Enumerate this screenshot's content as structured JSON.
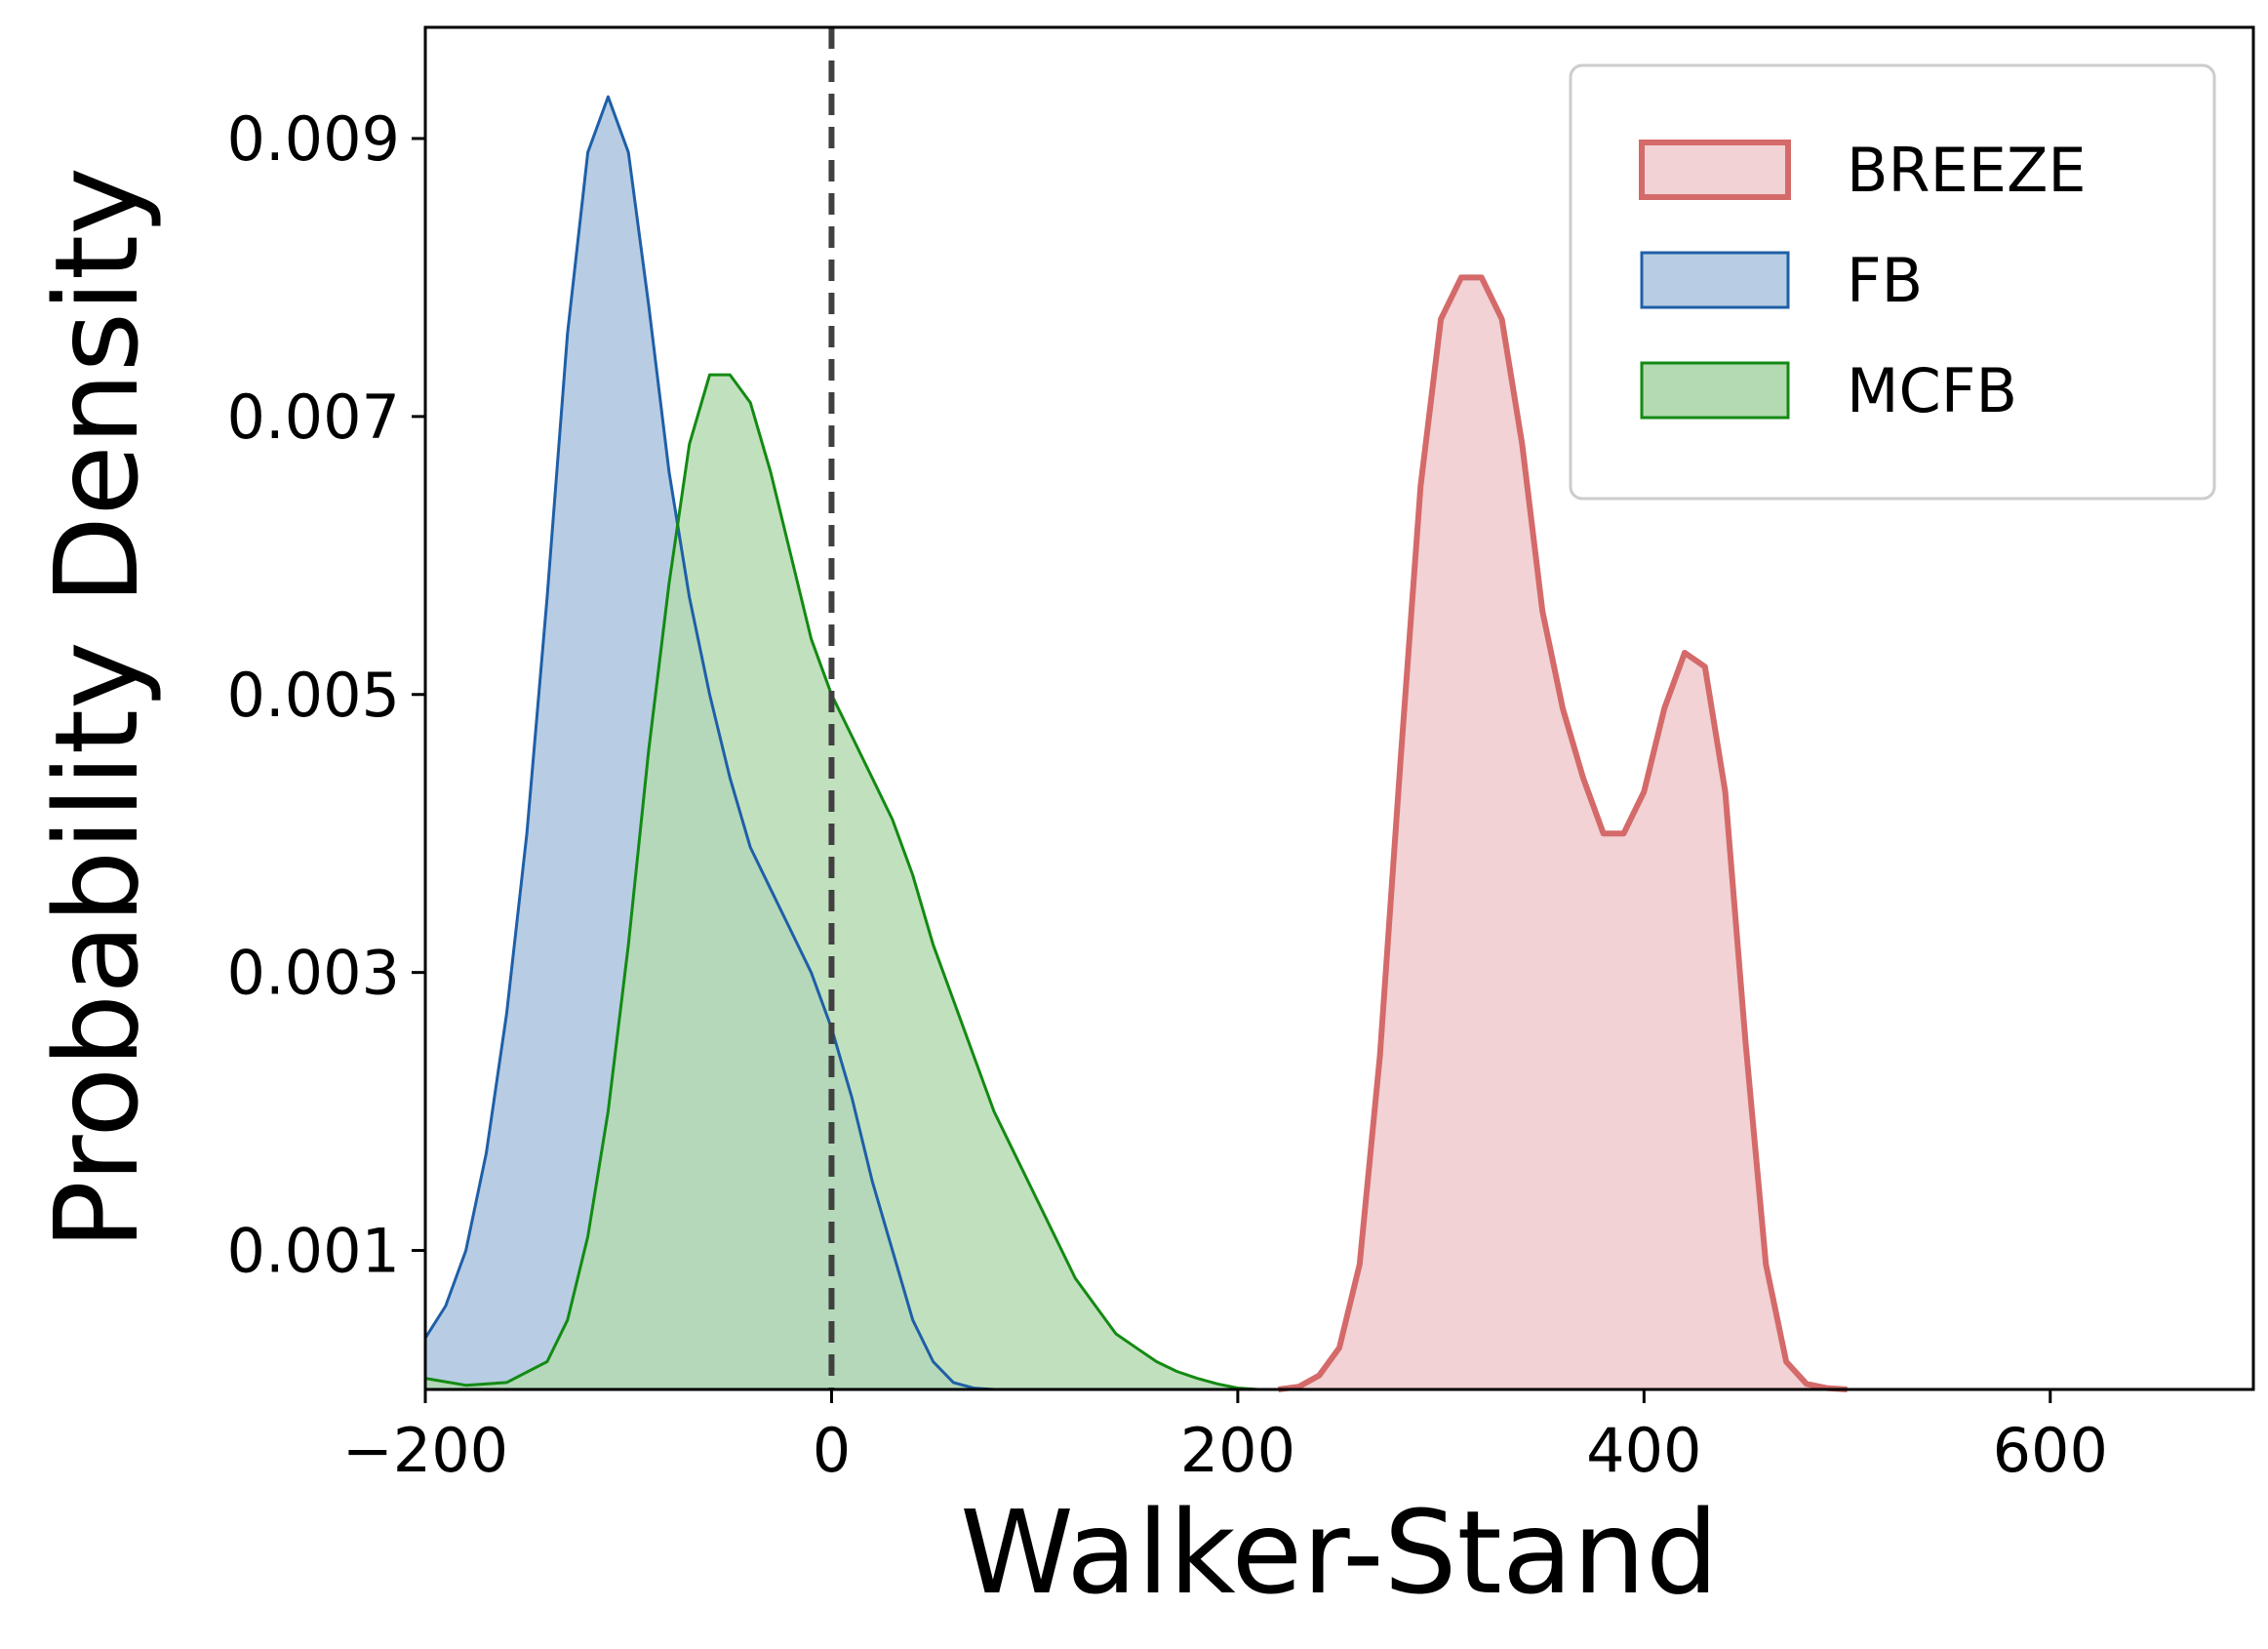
{
  "chart_data": {
    "type": "area",
    "title": "",
    "xlabel": "Walker-Stand",
    "ylabel": "Probability Density",
    "xlim": [
      -200,
      700
    ],
    "ylim": [
      0,
      0.0098
    ],
    "x_ticks": [
      -200,
      0,
      200,
      400,
      600
    ],
    "x_tick_labels": [
      "−200",
      "0",
      "200",
      "400",
      "600"
    ],
    "y_ticks": [
      0.001,
      0.003,
      0.005,
      0.007,
      0.009
    ],
    "y_tick_labels": [
      "0.001",
      "0.003",
      "0.005",
      "0.007",
      "0.009"
    ],
    "reference_line": {
      "x": 0,
      "style": "dashed",
      "color": "#404040"
    },
    "grid": false,
    "legend_position": "top-right",
    "series": [
      {
        "name": "BREEZE",
        "line_color": "#d46a6a",
        "fill_color": "#f2d2d4",
        "line_weight": "thick",
        "points": [
          [
            220,
            0.0
          ],
          [
            230,
            2e-05
          ],
          [
            240,
            0.0001
          ],
          [
            250,
            0.0003
          ],
          [
            260,
            0.0009
          ],
          [
            270,
            0.0024
          ],
          [
            280,
            0.0045
          ],
          [
            290,
            0.0065
          ],
          [
            300,
            0.0077
          ],
          [
            310,
            0.008
          ],
          [
            320,
            0.008
          ],
          [
            330,
            0.0077
          ],
          [
            340,
            0.0068
          ],
          [
            350,
            0.0056
          ],
          [
            360,
            0.0049
          ],
          [
            370,
            0.0044
          ],
          [
            380,
            0.004
          ],
          [
            390,
            0.004
          ],
          [
            400,
            0.0043
          ],
          [
            410,
            0.0049
          ],
          [
            420,
            0.0053
          ],
          [
            430,
            0.0052
          ],
          [
            440,
            0.0043
          ],
          [
            450,
            0.0025
          ],
          [
            460,
            0.0009
          ],
          [
            470,
            0.0002
          ],
          [
            480,
            4e-05
          ],
          [
            490,
            1e-05
          ],
          [
            500,
            0.0
          ]
        ]
      },
      {
        "name": "FB",
        "line_color": "#1f5fa8",
        "fill_color": "#b8cde3",
        "line_weight": "thin",
        "points": [
          [
            -200,
            0.00037
          ],
          [
            -190,
            0.0006
          ],
          [
            -180,
            0.001
          ],
          [
            -170,
            0.0017
          ],
          [
            -160,
            0.0027
          ],
          [
            -150,
            0.004
          ],
          [
            -140,
            0.0057
          ],
          [
            -130,
            0.0076
          ],
          [
            -120,
            0.0089
          ],
          [
            -110,
            0.0093
          ],
          [
            -100,
            0.0089
          ],
          [
            -90,
            0.0078
          ],
          [
            -80,
            0.0066
          ],
          [
            -70,
            0.0057
          ],
          [
            -60,
            0.005
          ],
          [
            -50,
            0.0044
          ],
          [
            -40,
            0.0039
          ],
          [
            -30,
            0.0036
          ],
          [
            -20,
            0.0033
          ],
          [
            -10,
            0.003
          ],
          [
            0,
            0.0026
          ],
          [
            10,
            0.0021
          ],
          [
            20,
            0.0015
          ],
          [
            30,
            0.001
          ],
          [
            40,
            0.0005
          ],
          [
            50,
            0.0002
          ],
          [
            60,
            5e-05
          ],
          [
            70,
            1e-05
          ],
          [
            80,
            0.0
          ]
        ]
      },
      {
        "name": "MCFB",
        "line_color": "#138a13",
        "fill_color": "#b3dab0",
        "line_weight": "thin",
        "points": [
          [
            -200,
            8e-05
          ],
          [
            -180,
            3e-05
          ],
          [
            -160,
            5e-05
          ],
          [
            -140,
            0.0002
          ],
          [
            -130,
            0.0005
          ],
          [
            -120,
            0.0011
          ],
          [
            -110,
            0.002
          ],
          [
            -100,
            0.0032
          ],
          [
            -90,
            0.0046
          ],
          [
            -80,
            0.0058
          ],
          [
            -70,
            0.0068
          ],
          [
            -60,
            0.0073
          ],
          [
            -50,
            0.0073
          ],
          [
            -40,
            0.0071
          ],
          [
            -30,
            0.0066
          ],
          [
            -20,
            0.006
          ],
          [
            -10,
            0.0054
          ],
          [
            0,
            0.005
          ],
          [
            10,
            0.0047
          ],
          [
            20,
            0.0044
          ],
          [
            30,
            0.0041
          ],
          [
            40,
            0.0037
          ],
          [
            50,
            0.0032
          ],
          [
            60,
            0.0028
          ],
          [
            70,
            0.0024
          ],
          [
            80,
            0.002
          ],
          [
            90,
            0.0017
          ],
          [
            100,
            0.0014
          ],
          [
            110,
            0.0011
          ],
          [
            120,
            0.0008
          ],
          [
            130,
            0.0006
          ],
          [
            140,
            0.0004
          ],
          [
            150,
            0.0003
          ],
          [
            160,
            0.0002
          ],
          [
            170,
            0.00013
          ],
          [
            180,
            8e-05
          ],
          [
            190,
            4e-05
          ],
          [
            200,
            1e-05
          ],
          [
            210,
            0.0
          ]
        ]
      }
    ]
  }
}
